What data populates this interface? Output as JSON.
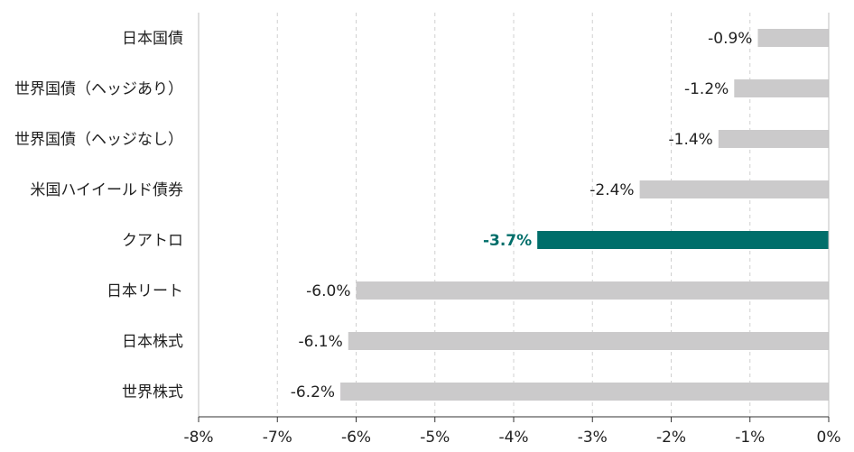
{
  "chart_data": {
    "type": "bar",
    "orientation": "horizontal",
    "categories": [
      "日本国債",
      "世界国債（ヘッジあり）",
      "世界国債（ヘッジなし）",
      "米国ハイイールド債券",
      "クアトロ",
      "日本リート",
      "日本株式",
      "世界株式"
    ],
    "values": [
      -0.9,
      -1.2,
      -1.4,
      -2.4,
      -3.7,
      -6.0,
      -6.1,
      -6.2
    ],
    "data_labels": [
      "-0.9%",
      "-1.2%",
      "-1.4%",
      "-2.4%",
      "-3.7%",
      "-6.0%",
      "-6.1%",
      "-6.2%"
    ],
    "highlight_index": 4,
    "xlim": [
      -8,
      0
    ],
    "x_ticks": [
      -8,
      -7,
      -6,
      -5,
      -4,
      -3,
      -2,
      -1,
      0
    ],
    "x_tick_labels": [
      "-8%",
      "-7%",
      "-6%",
      "-5%",
      "-4%",
      "-3%",
      "-2%",
      "-1%",
      "0%"
    ],
    "grid": "vertical dashed",
    "legend": "none",
    "title": "",
    "xlabel": "",
    "ylabel": ""
  },
  "colors": {
    "bar_default": "#cbcacb",
    "bar_highlight": "#006e6a",
    "label_highlight": "#006e6a",
    "text": "#222222",
    "grid": "#d0d0d0",
    "axis": "#bfbfbf"
  }
}
